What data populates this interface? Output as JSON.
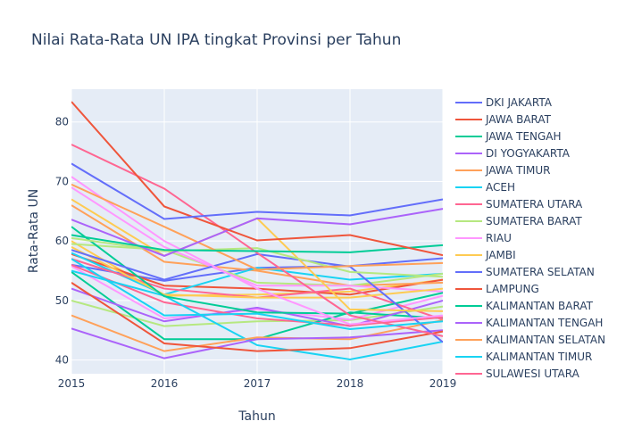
{
  "chart_data": {
    "type": "line",
    "title": "Nilai Rata-Rata UN IPA tingkat Provinsi per Tahun",
    "xlabel": "Tahun",
    "ylabel": "Rata-Rata UN",
    "x": [
      2015,
      2016,
      2017,
      2018,
      2019
    ],
    "x_tick_labels": [
      "2015",
      "2016",
      "2017",
      "2018",
      "2019"
    ],
    "y_ticks": [
      40,
      50,
      60,
      70,
      80
    ],
    "y_tick_labels": [
      "40",
      "50",
      "60",
      "70",
      "80"
    ],
    "xlim": [
      2015,
      2019
    ],
    "ylim": [
      37.7,
      85.5
    ],
    "grid": true,
    "legend_position": "right",
    "series": [
      {
        "name": "DKI JAKARTA",
        "color": "#636efa",
        "values": [
          73.0,
          63.7,
          64.9,
          64.3,
          67.0
        ]
      },
      {
        "name": "JAWA BARAT",
        "color": "#EF553B",
        "values": [
          83.4,
          65.8,
          60.1,
          61.0,
          57.6
        ]
      },
      {
        "name": "JAWA TENGAH",
        "color": "#00cc96",
        "values": [
          61.0,
          58.5,
          58.3,
          58.1,
          59.3
        ]
      },
      {
        "name": "DI YOGYAKARTA",
        "color": "#ab63fa",
        "values": [
          63.6,
          57.5,
          63.8,
          62.8,
          65.4
        ]
      },
      {
        "name": "JAWA TIMUR",
        "color": "#FFA15A",
        "values": [
          69.5,
          62.4,
          55.2,
          55.8,
          56.3
        ]
      },
      {
        "name": "ACEH",
        "color": "#19d3f3",
        "values": [
          57.0,
          47.5,
          47.8,
          45.2,
          46.5
        ]
      },
      {
        "name": "SUMATERA UTARA",
        "color": "#FF6692",
        "values": [
          76.2,
          68.8,
          58.0,
          47.5,
          44.0
        ]
      },
      {
        "name": "SUMATERA BARAT",
        "color": "#B6E880",
        "values": [
          60.5,
          58.3,
          58.8,
          54.8,
          54.0
        ]
      },
      {
        "name": "RIAU",
        "color": "#FF97FF",
        "values": [
          70.8,
          60.0,
          52.0,
          46.0,
          47.5
        ]
      },
      {
        "name": "JAMBI",
        "color": "#FECB52",
        "values": [
          67.0,
          57.5,
          63.8,
          48.5,
          48.2
        ]
      },
      {
        "name": "SUMATERA SELATAN",
        "color": "#636efa",
        "values": [
          58.5,
          53.5,
          57.8,
          55.7,
          43.0
        ]
      },
      {
        "name": "LAMPUNG",
        "color": "#EF553B",
        "values": [
          53.0,
          42.8,
          41.5,
          42.0,
          44.8
        ]
      },
      {
        "name": "KALIMANTAN BARAT",
        "color": "#00cc96",
        "values": [
          62.4,
          50.7,
          48.0,
          47.8,
          51.3
        ]
      },
      {
        "name": "KALIMANTAN TENGAH",
        "color": "#ab63fa",
        "values": [
          45.3,
          40.3,
          43.5,
          43.8,
          45.0
        ]
      },
      {
        "name": "KALIMANTAN SELATAN",
        "color": "#FFA15A",
        "values": [
          47.5,
          41.5,
          43.8,
          43.5,
          46.7
        ]
      },
      {
        "name": "KALIMANTAN TIMUR",
        "color": "#19d3f3",
        "values": [
          55.0,
          50.8,
          42.5,
          40.1,
          43.1
        ]
      },
      {
        "name": "SULAWESI UTARA",
        "color": "#FF6692",
        "values": [
          56.0,
          49.7,
          47.0,
          45.8,
          47.2
        ]
      }
    ],
    "extra_unlabeled_series": [
      {
        "color": "#B6E880",
        "values": [
          50.0,
          45.7,
          46.5,
          46.7,
          49.0
        ]
      },
      {
        "color": "#FF97FF",
        "values": [
          55.8,
          47.0,
          48.5,
          46.8,
          50.8
        ]
      },
      {
        "color": "#FECB52",
        "values": [
          60.0,
          50.8,
          51.0,
          51.5,
          53.5
        ]
      },
      {
        "color": "#636efa",
        "values": [
          56.0,
          53.3,
          55.5,
          55.8,
          57.1
        ]
      },
      {
        "color": "#EF553B",
        "values": [
          57.8,
          52.5,
          52.0,
          51.0,
          53.5
        ]
      },
      {
        "color": "#00cc96",
        "values": [
          54.8,
          43.5,
          43.5,
          48.0,
          47.0
        ]
      },
      {
        "color": "#ab63fa",
        "values": [
          52.0,
          46.5,
          48.8,
          45.7,
          50.0
        ]
      },
      {
        "color": "#FFA15A",
        "values": [
          66.0,
          56.5,
          55.0,
          52.5,
          53.0
        ]
      },
      {
        "color": "#19d3f3",
        "values": [
          58.0,
          51.0,
          55.5,
          53.5,
          54.5
        ]
      },
      {
        "color": "#FF6692",
        "values": [
          57.0,
          52.0,
          50.5,
          52.0,
          46.8
        ]
      },
      {
        "color": "#B6E880",
        "values": [
          59.5,
          58.5,
          53.0,
          52.5,
          54.5
        ]
      },
      {
        "color": "#FF97FF",
        "values": [
          69.0,
          59.0,
          52.5,
          52.5,
          51.5
        ]
      },
      {
        "color": "#FECB52",
        "values": [
          59.0,
          51.0,
          50.5,
          50.5,
          52.0
        ]
      }
    ]
  }
}
